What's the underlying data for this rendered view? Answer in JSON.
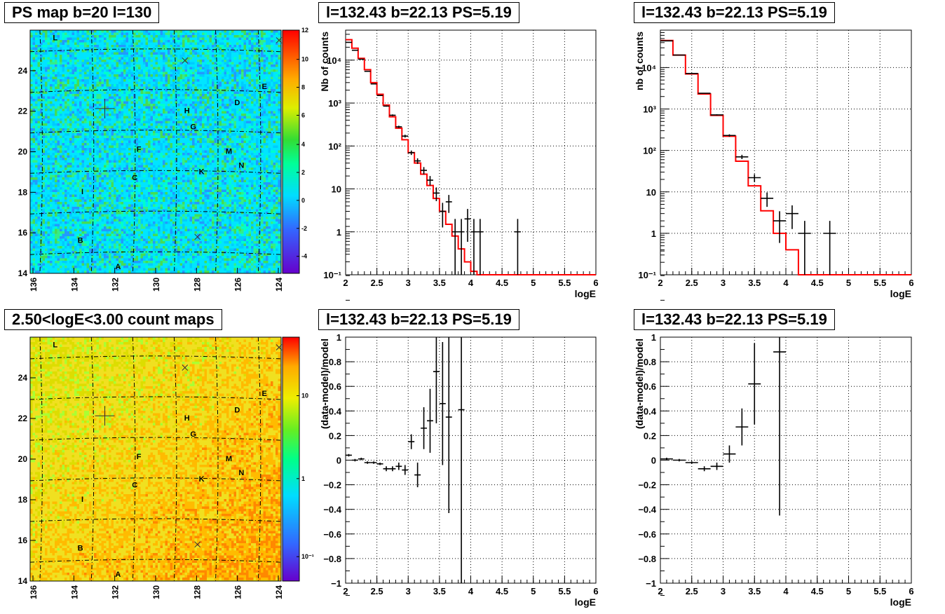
{
  "panels": {
    "ps_map": {
      "title": "PS map b=20 l=130",
      "x_ticks": [
        "136",
        "134",
        "132",
        "130",
        "128",
        "126",
        "124"
      ],
      "y_ticks": [
        "14",
        "16",
        "18",
        "20",
        "22",
        "24"
      ],
      "colorbar_ticks": [
        "12",
        "10",
        "8",
        "6",
        "4",
        "2",
        "0",
        "-2",
        "-4"
      ],
      "source_labels": [
        "L",
        "E",
        "D",
        "H",
        "G",
        "F",
        "M",
        "N",
        "K",
        "C",
        "I",
        "B",
        "A"
      ]
    },
    "count_map": {
      "title": "2.50<logE<3.00 count maps",
      "x_ticks": [
        "136",
        "134",
        "132",
        "130",
        "128",
        "126",
        "124"
      ],
      "y_ticks": [
        "14",
        "16",
        "18",
        "20",
        "22",
        "24"
      ],
      "colorbar_ticks": [
        "10",
        "1",
        "10⁻¹"
      ],
      "source_labels": [
        "L",
        "E",
        "D",
        "H",
        "G",
        "F",
        "M",
        "N",
        "K",
        "C",
        "I",
        "B",
        "A"
      ]
    },
    "spectrum_left": {
      "title": "l=132.43 b=22.13 PS=5.19",
      "xlabel": "logE",
      "ylabel": "Nb of counts"
    },
    "spectrum_right": {
      "title": "l=132.43 b=22.13 PS=5.19",
      "xlabel": "logE",
      "ylabel": "nb of counts"
    },
    "residual_left": {
      "title": "l=132.43 b=22.13 PS=5.19",
      "xlabel": "logE",
      "ylabel": "(data-model)/model"
    },
    "residual_right": {
      "title": "l=132.43 b=22.13 PS=5.19",
      "xlabel": "logE",
      "ylabel": "(data-model)/model"
    }
  },
  "colors": {
    "model_line": "#ff0000",
    "data_marker": "#000000",
    "map_background": "#00e5ff",
    "count_map_background": "#f0e020"
  },
  "chart_data": [
    {
      "type": "heatmap",
      "title": "PS map b=20 l=130",
      "xlim": [
        136,
        124
      ],
      "ylim": [
        14,
        26
      ],
      "zlim": [
        -5,
        12
      ],
      "dominant_value": 0,
      "sources": [
        {
          "label": "L",
          "l": 134.8,
          "b": 25.5
        },
        {
          "label": "E",
          "l": 124.8,
          "b": 23.1
        },
        {
          "label": "D",
          "l": 126.1,
          "b": 22.3
        },
        {
          "label": "H",
          "l": 128.5,
          "b": 21.9
        },
        {
          "label": "G",
          "l": 128.2,
          "b": 21.1
        },
        {
          "label": "F",
          "l": 130.8,
          "b": 20.0
        },
        {
          "label": "M",
          "l": 126.5,
          "b": 19.9
        },
        {
          "label": "N",
          "l": 125.9,
          "b": 19.2
        },
        {
          "label": "K",
          "l": 127.8,
          "b": 18.9
        },
        {
          "label": "C",
          "l": 131.0,
          "b": 18.6
        },
        {
          "label": "I",
          "l": 133.5,
          "b": 17.9
        },
        {
          "label": "B",
          "l": 133.6,
          "b": 15.5
        },
        {
          "label": "A",
          "l": 131.8,
          "b": 14.2
        }
      ]
    },
    {
      "type": "heatmap",
      "title": "2.50<logE<3.00 count maps",
      "xlim": [
        136,
        124
      ],
      "ylim": [
        14,
        26
      ],
      "scale": "log",
      "zlim": [
        0.05,
        40
      ]
    },
    {
      "type": "line",
      "title": "l=132.43 b=22.13 PS=5.19",
      "xlabel": "logE",
      "ylabel": "Nb of counts",
      "xlim": [
        2,
        6
      ],
      "ylim": [
        0.1,
        50000
      ],
      "yscale": "log",
      "grid": true,
      "series": [
        {
          "bin_edges": [
            2.0,
            2.1,
            2.2,
            2.3,
            2.4,
            2.5,
            2.6,
            2.7,
            2.8,
            2.9,
            3.0,
            3.1,
            3.2,
            3.3,
            3.4,
            3.5,
            3.6,
            3.7,
            3.8,
            3.9,
            4.0,
            4.1,
            4.2,
            6.0
          ],
          "values": [
            30000,
            19000,
            11000,
            6000,
            3000,
            1600,
            900,
            480,
            260,
            140,
            70,
            40,
            22,
            12,
            6,
            3,
            1.5,
            0.8,
            0.4,
            0.2,
            0.12,
            0.1,
            0.1
          ]
        },
        {
          "x": [
            2.05,
            2.15,
            2.25,
            2.35,
            2.45,
            2.55,
            2.65,
            2.75,
            2.85,
            2.95,
            3.05,
            3.15,
            3.25,
            3.35,
            3.45,
            3.55,
            3.65,
            3.75,
            3.85,
            3.95,
            4.05,
            4.15,
            4.75
          ],
          "y": [
            26000,
            17000,
            10500,
            5500,
            2800,
            1500,
            850,
            520,
            280,
            170,
            70,
            45,
            27,
            16,
            8,
            3,
            5,
            1,
            1,
            2,
            1,
            1,
            1
          ],
          "yerr": [
            0,
            0,
            0,
            0,
            0,
            0,
            0,
            0,
            0,
            0,
            0,
            0,
            0,
            0,
            0,
            0,
            0,
            0,
            0,
            0,
            0,
            0,
            0
          ]
        }
      ]
    },
    {
      "type": "line",
      "title": "l=132.43 b=22.13 PS=5.19",
      "xlabel": "logE",
      "ylabel": "nb of counts",
      "xlim": [
        2,
        6
      ],
      "ylim": [
        0.1,
        80000
      ],
      "yscale": "log",
      "grid": true,
      "series": [
        {
          "bin_edges": [
            2.0,
            2.2,
            2.4,
            2.6,
            2.8,
            3.0,
            3.2,
            3.4,
            3.6,
            3.8,
            4.0,
            4.2,
            6.0
          ],
          "values": [
            45000,
            20000,
            7000,
            2300,
            700,
            220,
            55,
            14,
            3.5,
            1,
            0.4,
            0.1
          ]
        },
        {
          "x": [
            2.1,
            2.3,
            2.5,
            2.7,
            2.9,
            3.1,
            3.3,
            3.5,
            3.7,
            3.9,
            4.1,
            4.3,
            4.7
          ],
          "y": [
            44000,
            20000,
            7200,
            2400,
            720,
            230,
            70,
            22,
            7,
            2,
            3,
            1,
            1
          ]
        }
      ]
    },
    {
      "type": "scatter",
      "title": "l=132.43 b=22.13 PS=5.19",
      "xlabel": "logE",
      "ylabel": "(data-model)/model",
      "xlim": [
        2,
        6
      ],
      "ylim": [
        -1,
        1
      ],
      "grid": true,
      "points": [
        {
          "x": 2.05,
          "y": 0.04,
          "err": 0.01
        },
        {
          "x": 2.15,
          "y": 0.0,
          "err": 0.01
        },
        {
          "x": 2.25,
          "y": 0.01,
          "err": 0.01
        },
        {
          "x": 2.35,
          "y": -0.02,
          "err": 0.01
        },
        {
          "x": 2.45,
          "y": -0.02,
          "err": 0.01
        },
        {
          "x": 2.55,
          "y": -0.03,
          "err": 0.01
        },
        {
          "x": 2.65,
          "y": -0.07,
          "err": 0.02
        },
        {
          "x": 2.75,
          "y": -0.07,
          "err": 0.02
        },
        {
          "x": 2.85,
          "y": -0.05,
          "err": 0.03
        },
        {
          "x": 2.95,
          "y": -0.08,
          "err": 0.04
        },
        {
          "x": 3.05,
          "y": 0.15,
          "err": 0.06
        },
        {
          "x": 3.15,
          "y": -0.12,
          "err": 0.1
        },
        {
          "x": 3.25,
          "y": 0.26,
          "err": 0.17
        },
        {
          "x": 3.35,
          "y": 0.32,
          "err": 0.26
        },
        {
          "x": 3.45,
          "y": 0.72,
          "err": 0.42
        },
        {
          "x": 3.55,
          "y": 0.46,
          "err": 0.5
        },
        {
          "x": 3.65,
          "y": 0.35,
          "err": 0.78
        },
        {
          "x": 3.85,
          "y": 0.41,
          "err": 1.6
        }
      ]
    },
    {
      "type": "scatter",
      "title": "l=132.43 b=22.13 PS=5.19",
      "xlabel": "logE",
      "ylabel": "(data-model)/model",
      "xlim": [
        2,
        6
      ],
      "ylim": [
        -1,
        1
      ],
      "grid": true,
      "points": [
        {
          "x": 2.1,
          "y": 0.01,
          "err": 0.01
        },
        {
          "x": 2.3,
          "y": 0.0,
          "err": 0.01
        },
        {
          "x": 2.5,
          "y": -0.02,
          "err": 0.01
        },
        {
          "x": 2.7,
          "y": -0.07,
          "err": 0.02
        },
        {
          "x": 2.9,
          "y": -0.05,
          "err": 0.03
        },
        {
          "x": 3.1,
          "y": 0.05,
          "err": 0.07
        },
        {
          "x": 3.3,
          "y": 0.27,
          "err": 0.15
        },
        {
          "x": 3.5,
          "y": 0.62,
          "err": 0.33
        },
        {
          "x": 3.9,
          "y": 0.88,
          "err": 1.33
        }
      ]
    }
  ]
}
